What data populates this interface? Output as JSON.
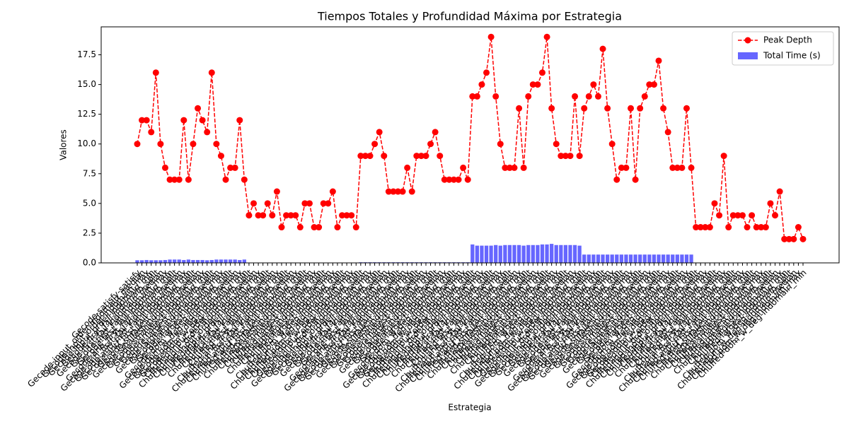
{
  "chart_data": {
    "type": "bar_line",
    "title": "Tiempos Totales y Profundidad Máxima por Estrategia",
    "x_label": "Estrategia",
    "y_label": "Valores",
    "ylim": [
      0,
      19.85
    ],
    "yticks": [
      {
        "value": 0,
        "label": "0.0"
      },
      2.5,
      {
        "value": 5,
        "label": "5.0"
      },
      7.5,
      {
        "value": 10,
        "label": "10.0"
      },
      12.5,
      {
        "value": 15,
        "label": "15.0"
      },
      17.5
    ],
    "grid": false,
    "legend": "upper right",
    "categories": [
      "Gecode-satisfy-satisfy",
      "Gecode-input_order-indomain_median",
      "Gecode-input_order-indomain_max",
      "Gecode-input_order-indomain_min",
      "Gecode-first_fail-indomain_split",
      "Gecode-first_fail-indomain_median",
      "Gecode-first_fail-indomain_max",
      "Gecode-first_fail-indomain_min",
      "Gecode-anti_first_fail-indomain_split",
      "Gecode-anti_first_fail-indomain_median",
      "Gecode-anti_first_fail-indomain_max",
      "Gecode-anti_first_fail-indomain_min",
      "Gecode-smallest-indomain_split",
      "Gecode-smallest-indomain_median",
      "Gecode-smallest-indomain_max",
      "Gecode-smallest-indomain_min",
      "Gecode-largest-indomain_split",
      "Gecode-largest-indomain_median",
      "Gecode-largest-indomain_max",
      "Gecode-largest-indomain_min",
      "Gecode-dom_w_deg-indomain_split",
      "Gecode-dom_w_deg-indomain_median",
      "Gecode-dom_w_deg-indomain_max",
      "Gecode-dom_w_deg-indomain_min",
      "Chuffed-input_order-indomain_split",
      "Chuffed-input_order-indomain_median",
      "Chuffed-input_order-indomain_max",
      "Chuffed-input_order-indomain_min",
      "Chuffed-first_fail-indomain_split",
      "Chuffed-first_fail-indomain_median",
      "Chuffed-first_fail-indomain_max",
      "Chuffed-first_fail-indomain_min",
      "Chuffed-anti_first_fail-indomain_split",
      "Chuffed-anti_first_fail-indomain_median",
      "Chuffed-anti_first_fail-indomain_max",
      "Chuffed-anti_first_fail-indomain_min",
      "Chuffed-smallest-indomain_split",
      "Chuffed-smallest-indomain_median",
      "Chuffed-smallest-indomain_max",
      "Chuffed-smallest-indomain_min",
      "Chuffed-largest-indomain_split",
      "Chuffed-largest-indomain_median",
      "Chuffed-largest-indomain_max",
      "Chuffed-largest-indomain_min",
      "Chuffed-dom_w_deg-indomain_split",
      "Chuffed-dom_w_deg-indomain_median",
      "Chuffed-dom_w_deg-indomain_max",
      "Chuffed-dom_w_deg-indomain_min",
      "Gecode-input_order-indomain_split",
      "Gecode-input_order-indomain_median",
      "Gecode-input_order-indomain_max",
      "Gecode-input_order-indomain_min",
      "Gecode-first_fail-indomain_split",
      "Gecode-first_fail-indomain_median",
      "Gecode-first_fail-indomain_max",
      "Gecode-first_fail-indomain_min",
      "Gecode-anti_first_fail-indomain_split",
      "Gecode-anti_first_fail-indomain_median",
      "Gecode-anti_first_fail-indomain_max",
      "Gecode-anti_first_fail-indomain_min",
      "Gecode-smallest-indomain_split",
      "Gecode-smallest-indomain_median",
      "Gecode-smallest-indomain_max",
      "Gecode-smallest-indomain_min",
      "Gecode-largest-indomain_split",
      "Gecode-largest-indomain_median",
      "Gecode-largest-indomain_max",
      "Gecode-largest-indomain_min",
      "Gecode-dom_w_deg-indomain_split",
      "Gecode-dom_w_deg-indomain_median",
      "Gecode-dom_w_deg-indomain_max",
      "Gecode-dom_w_deg-indomain_min",
      "Chuffed-input_order-indomain_split",
      "Chuffed-input_order-indomain_median",
      "Chuffed-input_order-indomain_max",
      "Chuffed-input_order-indomain_min",
      "Chuffed-first_fail-indomain_split",
      "Chuffed-first_fail-indomain_median",
      "Chuffed-first_fail-indomain_max",
      "Chuffed-first_fail-indomain_min",
      "Chuffed-anti_first_fail-indomain_split",
      "Chuffed-anti_first_fail-indomain_median",
      "Chuffed-anti_first_fail-indomain_max",
      "Chuffed-anti_first_fail-indomain_min",
      "Chuffed-smallest-indomain_split",
      "Chuffed-smallest-indomain_median",
      "Chuffed-smallest-indomain_max",
      "Chuffed-smallest-indomain_min",
      "Chuffed-largest-indomain_split",
      "Chuffed-largest-indomain_median",
      "Chuffed-largest-indomain_max",
      "Chuffed-largest-indomain_min",
      "Chuffed-dom_w_deg-indomain_split",
      "Chuffed-dom_w_deg-indomain_median",
      "Chuffed-dom_w_deg-indomain_max",
      "Chuffed-dom_w_deg-indomain_min",
      "Gecode-input_order-indomain_split",
      "Gecode-input_order-indomain_median",
      "Gecode-input_order-indomain_max",
      "Gecode-input_order-indomain_min",
      "Gecode-first_fail-indomain_split",
      "Gecode-first_fail-indomain_median",
      "Gecode-first_fail-indomain_max",
      "Gecode-first_fail-indomain_min",
      "Gecode-anti_first_fail-indomain_split",
      "Gecode-anti_first_fail-indomain_median",
      "Gecode-anti_first_fail-indomain_max",
      "Gecode-anti_first_fail-indomain_min",
      "Gecode-smallest-indomain_split",
      "Gecode-smallest-indomain_median",
      "Gecode-smallest-indomain_max",
      "Gecode-smallest-indomain_min",
      "Gecode-largest-indomain_split",
      "Gecode-largest-indomain_median",
      "Gecode-largest-indomain_max",
      "Gecode-largest-indomain_min",
      "Gecode-dom_w_deg-indomain_split",
      "Gecode-dom_w_deg-indomain_median",
      "Gecode-dom_w_deg-indomain_max",
      "Gecode-dom_w_deg-indomain_min",
      "Chuffed-input_order-indomain_split",
      "Chuffed-input_order-indomain_median",
      "Chuffed-input_order-indomain_max",
      "Chuffed-input_order-indomain_min",
      "Chuffed-first_fail-indomain_split",
      "Chuffed-first_fail-indomain_median",
      "Chuffed-first_fail-indomain_max",
      "Chuffed-first_fail-indomain_min",
      "Chuffed-anti_first_fail-indomain_split",
      "Chuffed-anti_first_fail-indomain_median",
      "Chuffed-anti_first_fail-indomain_max",
      "Chuffed-anti_first_fail-indomain_min",
      "Chuffed-smallest-indomain_split",
      "Chuffed-smallest-indomain_median",
      "Chuffed-smallest-indomain_max",
      "Chuffed-smallest-indomain_min",
      "Chuffed-largest-indomain_split",
      "Chuffed-largest-indomain_median",
      "Chuffed-largest-indomain_max",
      "Chuffed-largest-indomain_min",
      "Chuffed-dom_w_deg-indomain_split",
      "Chuffed-dom_w_deg-indomain_median",
      "Chuffed-dom_w_deg-indomain_max",
      "Chuffed-dom_w_deg-indomain_min"
    ],
    "series": [
      {
        "name": "Total Time (s)",
        "type": "bar",
        "color": "#6666ff",
        "values": [
          0.22,
          0.22,
          0.24,
          0.22,
          0.22,
          0.22,
          0.24,
          0.28,
          0.28,
          0.28,
          0.24,
          0.28,
          0.24,
          0.24,
          0.24,
          0.22,
          0.24,
          0.28,
          0.28,
          0.28,
          0.28,
          0.28,
          0.24,
          0.28,
          0.01,
          0.01,
          0.01,
          0.01,
          0.01,
          0.01,
          0.01,
          0.01,
          0.01,
          0.01,
          0.01,
          0.01,
          0.01,
          0.01,
          0.01,
          0.01,
          0.01,
          0.01,
          0.01,
          0.01,
          0.01,
          0.01,
          0.01,
          0.01,
          0.05,
          0.05,
          0.05,
          0.05,
          0.05,
          0.05,
          0.05,
          0.05,
          0.05,
          0.05,
          0.05,
          0.05,
          0.05,
          0.05,
          0.05,
          0.05,
          0.05,
          0.05,
          0.05,
          0.05,
          0.05,
          0.05,
          0.05,
          0.05,
          1.55,
          1.45,
          1.45,
          1.45,
          1.45,
          1.5,
          1.45,
          1.5,
          1.5,
          1.5,
          1.5,
          1.45,
          1.5,
          1.5,
          1.5,
          1.55,
          1.55,
          1.6,
          1.5,
          1.5,
          1.5,
          1.5,
          1.5,
          1.45,
          0.7,
          0.7,
          0.7,
          0.7,
          0.7,
          0.7,
          0.7,
          0.7,
          0.7,
          0.7,
          0.7,
          0.7,
          0.7,
          0.7,
          0.7,
          0.7,
          0.7,
          0.7,
          0.7,
          0.7,
          0.7,
          0.7,
          0.7,
          0.7,
          0.01,
          0.01,
          0.01,
          0.01,
          0.01,
          0.01,
          0.01,
          0.01,
          0.01,
          0.01,
          0.01,
          0.01,
          0.01,
          0.01,
          0.01,
          0.01,
          0.01,
          0.01,
          0.01,
          0.01,
          0.01,
          0.01,
          0.01,
          0.01
        ]
      },
      {
        "name": "Peak Depth",
        "type": "line",
        "color": "red",
        "values": [
          10,
          12,
          12,
          11,
          16,
          10,
          8,
          7,
          7,
          7,
          12,
          7,
          10,
          13,
          12,
          11,
          16,
          10,
          9,
          7,
          8,
          8,
          12,
          7,
          4,
          5,
          4,
          4,
          5,
          4,
          6,
          3,
          4,
          4,
          4,
          3,
          5,
          5,
          3,
          3,
          5,
          5,
          6,
          3,
          4,
          4,
          4,
          3,
          9,
          9,
          9,
          10,
          11,
          9,
          6,
          6,
          6,
          6,
          8,
          6,
          9,
          9,
          9,
          10,
          11,
          9,
          7,
          7,
          7,
          7,
          8,
          7,
          14,
          14,
          15,
          16,
          19,
          14,
          10,
          8,
          8,
          8,
          13,
          8,
          14,
          15,
          15,
          16,
          19,
          13,
          10,
          9,
          9,
          9,
          14,
          9,
          13,
          14,
          15,
          14,
          18,
          13,
          10,
          7,
          8,
          8,
          13,
          7,
          13,
          14,
          15,
          15,
          17,
          13,
          11,
          8,
          8,
          8,
          13,
          8,
          3,
          3,
          3,
          3,
          5,
          4,
          9,
          3,
          4,
          4,
          4,
          3,
          4,
          3,
          3,
          3,
          5,
          4,
          6,
          2,
          2,
          2,
          3,
          2
        ]
      }
    ]
  }
}
